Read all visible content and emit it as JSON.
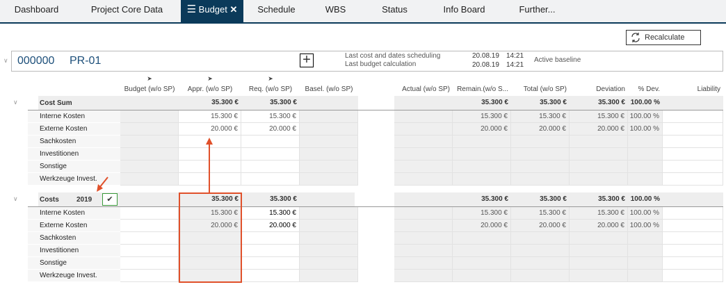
{
  "tabs": [
    {
      "label": "Dashboard"
    },
    {
      "label": "Project Core Data"
    },
    {
      "label": "Budget",
      "active": true
    },
    {
      "label": "Schedule"
    },
    {
      "label": "WBS"
    },
    {
      "label": "Status"
    },
    {
      "label": "Info Board"
    },
    {
      "label": "Further..."
    }
  ],
  "recalculate_label": "Recalculate",
  "project": {
    "number": "000000",
    "code": "PR-01",
    "sched_label": "Last cost and dates scheduling",
    "sched_date": "20.08.19",
    "sched_time": "14:21",
    "calc_label": "Last budget calculation",
    "calc_date": "20.08.19",
    "calc_time": "14:21",
    "baseline": "Active baseline"
  },
  "columns": [
    "Budget (w/o SP)",
    "Appr. (w/o SP)",
    "Req. (w/o SP)",
    "Basel. (w/o SP)",
    "Actual (w/o SP)",
    "Remain.(w/o S...",
    "Total (w/o SP)",
    "Deviation",
    "% Dev.",
    "Liability"
  ],
  "groups": [
    {
      "label": "Cost Sum",
      "year": "",
      "sum": [
        "",
        "35.300 €",
        "35.300 €",
        "",
        "",
        "35.300 €",
        "35.300 €",
        "35.300 €",
        "100.00 %",
        ""
      ],
      "rows": [
        {
          "label": "Interne Kosten",
          "values": [
            "",
            "15.300 €",
            "15.300 €",
            "",
            "",
            "15.300 €",
            "15.300 €",
            "15.300 €",
            "100.00 %",
            ""
          ]
        },
        {
          "label": "Externe Kosten",
          "values": [
            "",
            "20.000 €",
            "20.000 €",
            "",
            "",
            "20.000 €",
            "20.000 €",
            "20.000 €",
            "100.00 %",
            ""
          ]
        },
        {
          "label": "Sachkosten",
          "values": [
            "",
            "",
            "",
            "",
            "",
            "",
            "",
            "",
            "",
            ""
          ]
        },
        {
          "label": "Investitionen",
          "values": [
            "",
            "",
            "",
            "",
            "",
            "",
            "",
            "",
            "",
            ""
          ]
        },
        {
          "label": "Sonstige",
          "values": [
            "",
            "",
            "",
            "",
            "",
            "",
            "",
            "",
            "",
            ""
          ]
        },
        {
          "label": "Werkzeuge Invest.",
          "values": [
            "",
            "",
            "",
            "",
            "",
            "",
            "",
            "",
            "",
            ""
          ]
        }
      ]
    },
    {
      "label": "Costs",
      "year": "2019",
      "checked": true,
      "sum": [
        "",
        "35.300 €",
        "35.300 €",
        "",
        "",
        "35.300 €",
        "35.300 €",
        "35.300 €",
        "100.00 %",
        ""
      ],
      "rows": [
        {
          "label": "Interne Kosten",
          "values": [
            "",
            "15.300 €",
            "15.300 €",
            "",
            "",
            "15.300 €",
            "15.300 €",
            "15.300 €",
            "100.00 %",
            ""
          ]
        },
        {
          "label": "Externe Kosten",
          "values": [
            "",
            "20.000 €",
            "20.000 €",
            "",
            "",
            "20.000 €",
            "20.000 €",
            "20.000 €",
            "100.00 %",
            ""
          ]
        },
        {
          "label": "Sachkosten",
          "values": [
            "",
            "",
            "",
            "",
            "",
            "",
            "",
            "",
            "",
            ""
          ]
        },
        {
          "label": "Investitionen",
          "values": [
            "",
            "",
            "",
            "",
            "",
            "",
            "",
            "",
            "",
            ""
          ]
        },
        {
          "label": "Sonstige",
          "values": [
            "",
            "",
            "",
            "",
            "",
            "",
            "",
            "",
            "",
            ""
          ]
        },
        {
          "label": "Werkzeuge Invest.",
          "values": [
            "",
            "",
            "",
            "",
            "",
            "",
            "",
            "",
            "",
            ""
          ]
        }
      ]
    }
  ],
  "annotation_color": "#e0502a"
}
